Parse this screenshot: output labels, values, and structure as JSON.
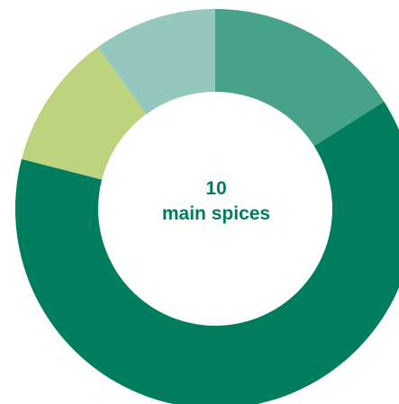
{
  "chart_data": {
    "type": "pie",
    "style": "donut",
    "center_text": {
      "line1": "10",
      "line2": "main spices"
    },
    "slices": [
      {
        "value": 16,
        "color": "#47A28A"
      },
      {
        "value": 63,
        "color": "#007D5E"
      },
      {
        "value": 11,
        "color": "#BED37E"
      },
      {
        "value": 10,
        "color": "#95C8BC"
      }
    ],
    "start_angle_deg": 0,
    "direction": "clockwise"
  },
  "colors": {
    "label": "#007D5E",
    "background": "#FFFFFF"
  }
}
